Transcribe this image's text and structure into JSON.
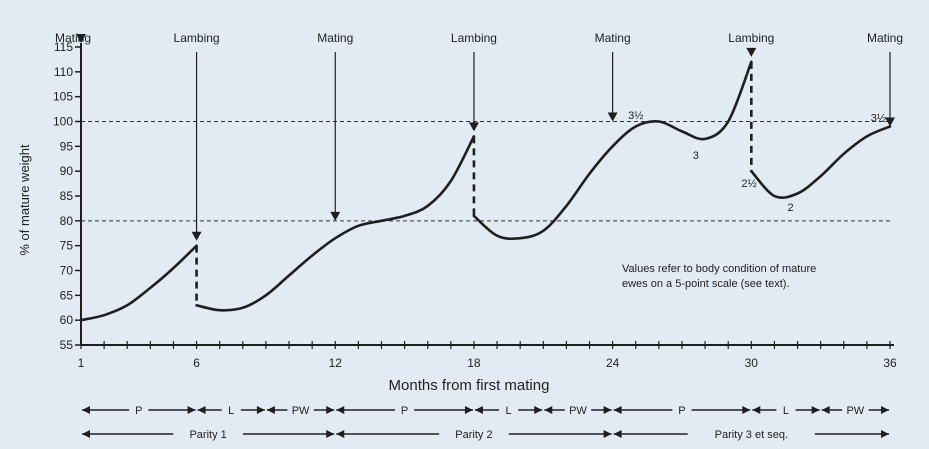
{
  "chart_data": {
    "type": "line",
    "title": "",
    "xlabel": "Months from first mating",
    "ylabel": "% of mature weight",
    "xlim": [
      1,
      36
    ],
    "ylim": [
      55,
      115
    ],
    "x_ticks": [
      1,
      6,
      12,
      18,
      24,
      30,
      36
    ],
    "y_ticks": [
      55,
      60,
      65,
      70,
      75,
      80,
      85,
      90,
      95,
      100,
      105,
      110,
      115
    ],
    "grid": false,
    "reference_lines": [
      80,
      100
    ],
    "events": [
      {
        "label": "Mating",
        "x": 1,
        "y": 115
      },
      {
        "label": "Lambing",
        "x": 6,
        "y": 76
      },
      {
        "label": "Mating",
        "x": 12,
        "y": 80
      },
      {
        "label": "Lambing",
        "x": 18,
        "y": 98
      },
      {
        "label": "Mating",
        "x": 24,
        "y": 100
      },
      {
        "label": "Lambing",
        "x": 30,
        "y": 113
      },
      {
        "label": "Mating",
        "x": 36,
        "y": 99
      }
    ],
    "segments": [
      {
        "x": [
          1,
          2,
          3,
          4,
          5,
          6
        ],
        "y": [
          60,
          61,
          63,
          66.5,
          70.5,
          75
        ]
      },
      {
        "x": [
          6,
          7,
          8,
          9,
          10,
          11,
          12,
          13,
          14,
          15,
          16,
          17,
          18
        ],
        "y": [
          63,
          62,
          62.5,
          65,
          69,
          73,
          76.5,
          79,
          80,
          81,
          83,
          88,
          97
        ]
      },
      {
        "x": [
          18,
          19,
          20,
          21,
          22,
          23,
          24,
          25,
          26,
          27,
          28,
          29,
          30
        ],
        "y": [
          81,
          77,
          76.5,
          78,
          83,
          89.5,
          95,
          99,
          100,
          98,
          96.5,
          100,
          112
        ]
      },
      {
        "x": [
          30,
          31,
          32,
          33,
          34,
          35,
          36
        ],
        "y": [
          90,
          85,
          85.5,
          89,
          93.5,
          97,
          99
        ]
      }
    ],
    "condition_scores": [
      {
        "text": "3½",
        "x": 25,
        "y": 100.5
      },
      {
        "text": "3",
        "x": 27.6,
        "y": 92.5
      },
      {
        "text": "2½",
        "x": 29.9,
        "y": 86.8
      },
      {
        "text": "2",
        "x": 31.7,
        "y": 82
      },
      {
        "text": "3½",
        "x": 35.5,
        "y": 100
      }
    ],
    "annotation": [
      "Values refer to body condition of mature",
      "ewes on a 5-point scale (see text)."
    ],
    "phases": [
      {
        "label": "P",
        "from": 1,
        "to": 6
      },
      {
        "label": "L",
        "from": 6,
        "to": 9
      },
      {
        "label": "PW",
        "from": 9,
        "to": 12
      },
      {
        "label": "P",
        "from": 12,
        "to": 18
      },
      {
        "label": "L",
        "from": 18,
        "to": 21
      },
      {
        "label": "PW",
        "from": 21,
        "to": 24
      },
      {
        "label": "P",
        "from": 24,
        "to": 30
      },
      {
        "label": "L",
        "from": 30,
        "to": 33
      },
      {
        "label": "PW",
        "from": 33,
        "to": 36
      }
    ],
    "parities": [
      {
        "label": "Parity 1",
        "from": 1,
        "to": 12
      },
      {
        "label": "Parity 2",
        "from": 12,
        "to": 24
      },
      {
        "label": "Parity 3 et seq.",
        "from": 24,
        "to": 36
      }
    ]
  }
}
